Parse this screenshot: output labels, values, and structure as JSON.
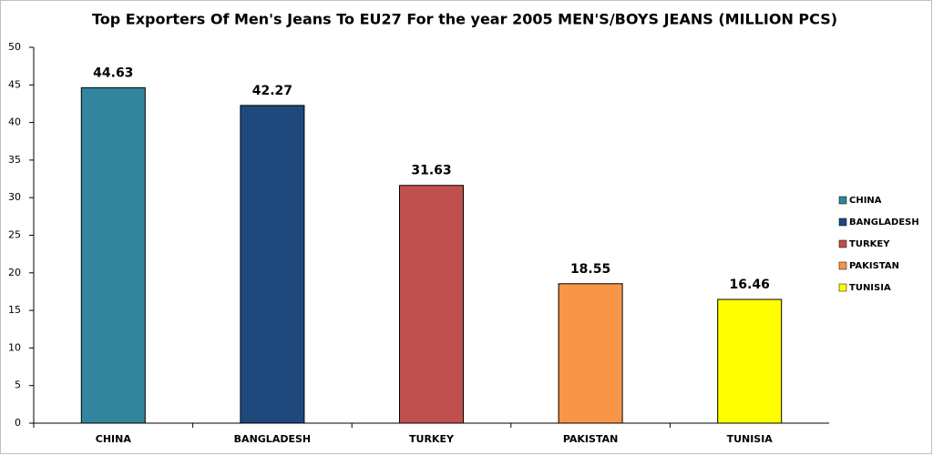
{
  "chart_data": {
    "type": "bar",
    "title": "Top Exporters Of Men's Jeans To EU27 For the year 2005 MEN'S/BOYS JEANS (MILLION PCS)",
    "categories": [
      "CHINA",
      "BANGLADESH",
      "TURKEY",
      "PAKISTAN",
      "TUNISIA"
    ],
    "values": [
      44.63,
      42.27,
      31.63,
      18.55,
      16.46
    ],
    "colors": [
      "#31859c",
      "#1f497d",
      "#c0504d",
      "#f79646",
      "#ffff00"
    ],
    "ylim": [
      0,
      50
    ],
    "yticks": [
      0,
      5,
      10,
      15,
      20,
      25,
      30,
      35,
      40,
      45,
      50
    ],
    "legend": "right"
  }
}
